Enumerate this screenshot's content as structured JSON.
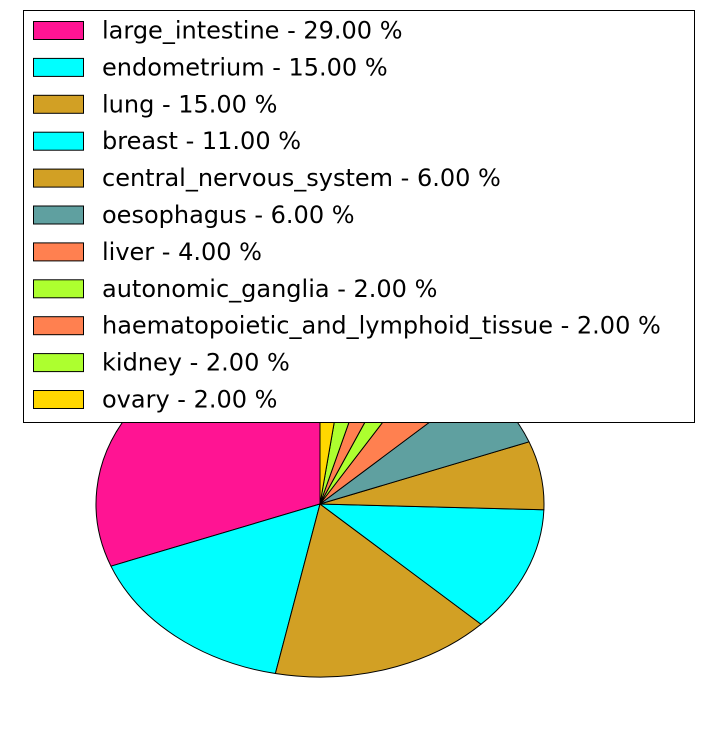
{
  "chart_data": {
    "type": "pie",
    "title": "",
    "legend_placement": "top",
    "slices": [
      {
        "label": "large_intestine",
        "value": 29.0,
        "color": "#FF1493",
        "legend_text": "large_intestine - 29.00 %"
      },
      {
        "label": "endometrium",
        "value": 15.0,
        "color": "#00FFFF",
        "legend_text": "endometrium - 15.00 %"
      },
      {
        "label": "lung",
        "value": 15.0,
        "color": "#D2A024",
        "legend_text": "lung - 15.00 %"
      },
      {
        "label": "breast",
        "value": 11.0,
        "color": "#00FFFF",
        "legend_text": "breast - 11.00 %"
      },
      {
        "label": "central_nervous_system",
        "value": 6.0,
        "color": "#D2A024",
        "legend_text": "central_nervous_system - 6.00 %"
      },
      {
        "label": "oesophagus",
        "value": 6.0,
        "color": "#5FA0A0",
        "legend_text": "oesophagus - 6.00 %"
      },
      {
        "label": "liver",
        "value": 4.0,
        "color": "#FF8050",
        "legend_text": "liver - 4.00 %"
      },
      {
        "label": "autonomic_ganglia",
        "value": 2.0,
        "color": "#ADFF2F",
        "legend_text": "autonomic_ganglia - 2.00 %"
      },
      {
        "label": "haematopoietic_and_lymphoid_tissue",
        "value": 2.0,
        "color": "#FF8050",
        "legend_text": "haematopoietic_and_lymphoid_tissue - 2.00 %"
      },
      {
        "label": "kidney",
        "value": 2.0,
        "color": "#ADFF2F",
        "legend_text": "kidney - 2.00 %"
      },
      {
        "label": "ovary",
        "value": 2.0,
        "color": "#FFD700",
        "legend_text": "ovary - 2.00 %"
      }
    ]
  }
}
